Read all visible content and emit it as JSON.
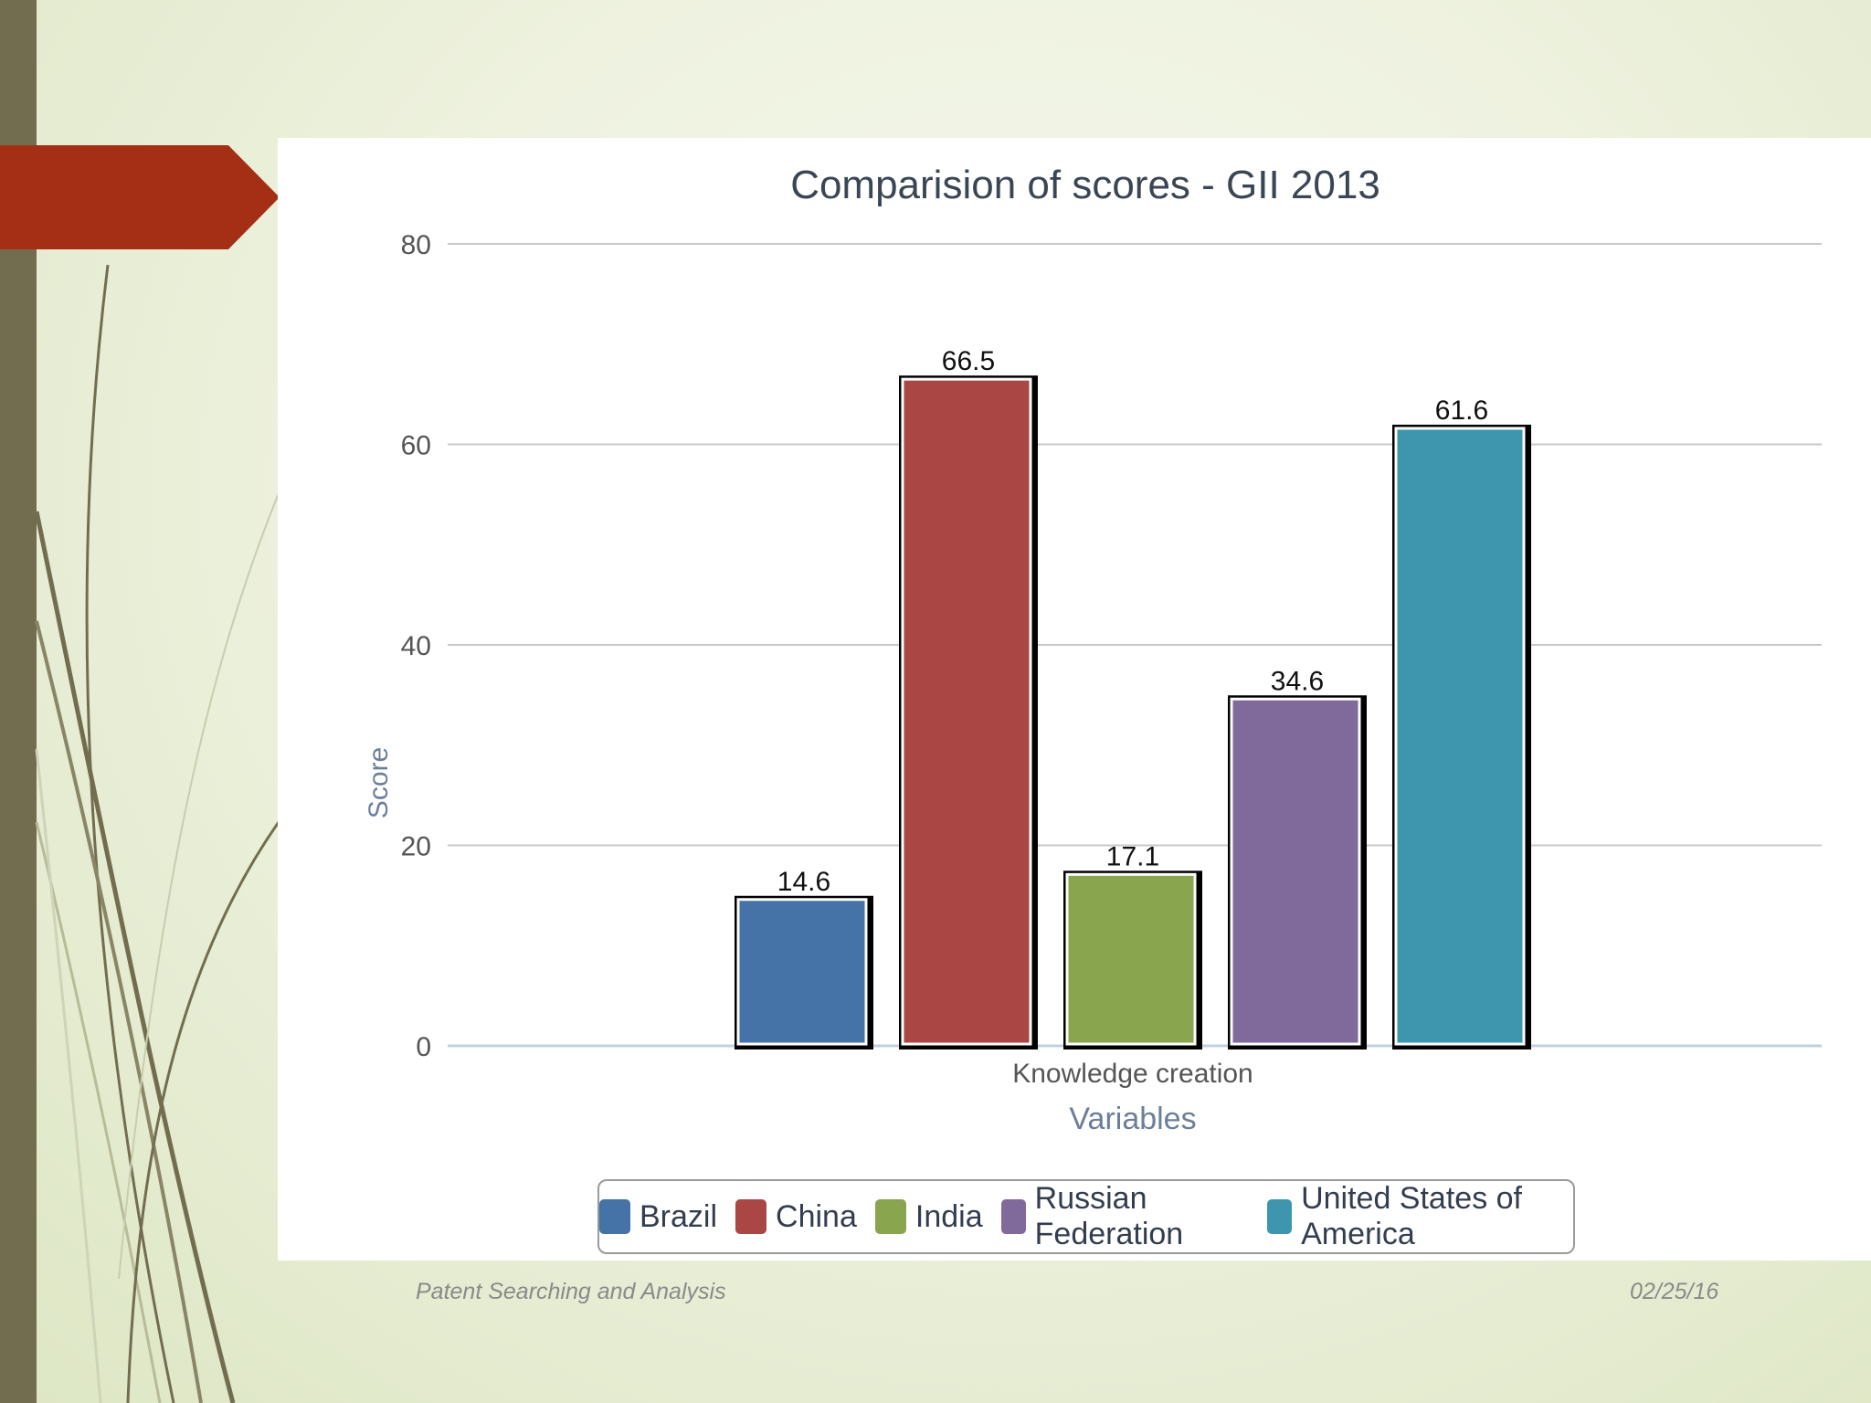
{
  "slide": {
    "footer_left": "Patent Searching and Analysis",
    "footer_right": "02/25/16"
  },
  "colors": {
    "left_bar": "#736d50",
    "arrow": "#a52f15",
    "grid": "#c8c8c8",
    "axis": "#c0d0e0"
  },
  "chart_data": {
    "type": "bar",
    "title": "Comparision of scores - GII 2013",
    "xlabel": "Variables",
    "ylabel": "Score",
    "categories": [
      "Knowledge creation"
    ],
    "ylim": [
      0,
      80
    ],
    "yticks": [
      0,
      20,
      40,
      60,
      80
    ],
    "grid": true,
    "legend_position": "bottom",
    "series": [
      {
        "name": "Brazil",
        "values": [
          14.6
        ],
        "color": "#4572a7"
      },
      {
        "name": "China",
        "values": [
          66.5
        ],
        "color": "#aa4643"
      },
      {
        "name": "India",
        "values": [
          17.1
        ],
        "color": "#89a54e"
      },
      {
        "name": "Russian Federation",
        "values": [
          34.6
        ],
        "color": "#80699b"
      },
      {
        "name": "United States of America",
        "values": [
          61.6
        ],
        "color": "#3d96ae"
      }
    ]
  }
}
